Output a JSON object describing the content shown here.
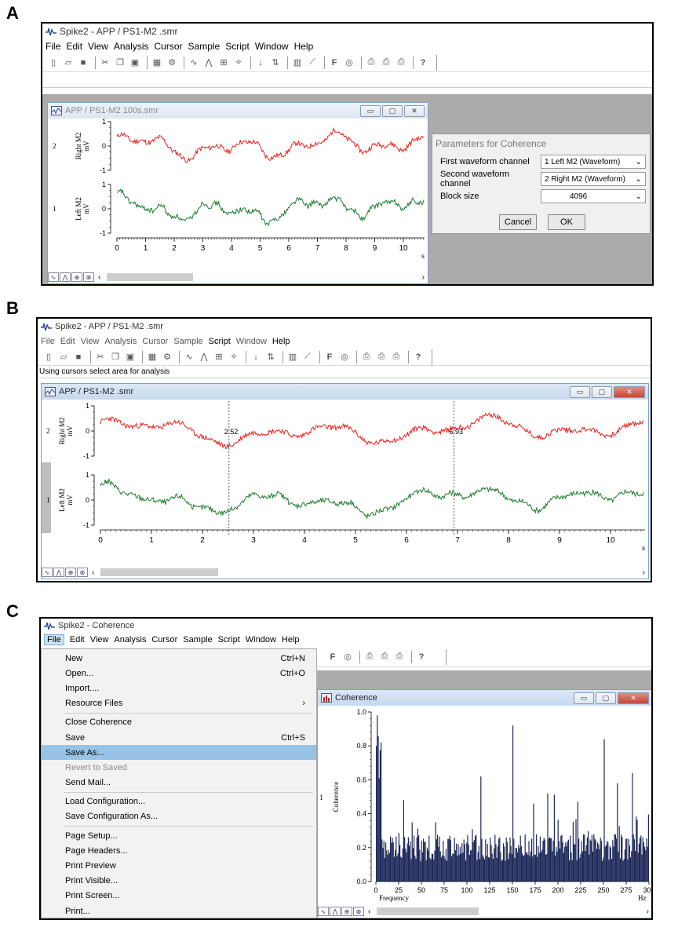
{
  "panels": {
    "A": {
      "letter": "A",
      "app_title": "Spike2 - APP / PS1-M2 .smr",
      "menu": [
        "File",
        "Edit",
        "View",
        "Analysis",
        "Cursor",
        "Sample",
        "Script",
        "Window",
        "Help"
      ],
      "child_title": "APP / PS1-M2 100s.smr",
      "channels": [
        {
          "num": "2",
          "label": "Right M2",
          "unit": "mV",
          "color": "#e8211c"
        },
        {
          "num": "1",
          "label": "Left M2",
          "unit": "mV",
          "color": "#1a7a2e"
        }
      ],
      "yticks": [
        "1",
        "0",
        "-1"
      ],
      "xticks": [
        "0",
        "1",
        "2",
        "3",
        "4",
        "5",
        "6",
        "7",
        "8",
        "9",
        "10"
      ],
      "xunit": "s",
      "dialog": {
        "title": "Parameters for Coherence",
        "rows": [
          {
            "label": "First waveform channel",
            "value": "1 Left M2 (Waveform)"
          },
          {
            "label": "Second waveform channel",
            "value": "2 Right M2 (Waveform)"
          },
          {
            "label": "Block size",
            "value": "4096"
          }
        ],
        "cancel": "Cancel",
        "ok": "OK"
      }
    },
    "B": {
      "letter": "B",
      "app_title": "Spike2 - APP / PS1-M2 .smr",
      "menu": [
        "File",
        "Edit",
        "View",
        "Analysis",
        "Cursor",
        "Sample",
        "Script",
        "Window",
        "Help"
      ],
      "status": "Using cursors select area for analysis",
      "child_title": "APP / PS1-M2 .smr",
      "channels": [
        {
          "num": "2",
          "label": "Right M2",
          "unit": "mV",
          "color": "#e8211c"
        },
        {
          "num": "1",
          "label": "Left M2",
          "unit": "mV",
          "color": "#1a7a2e"
        }
      ],
      "yticks": [
        "1",
        "0",
        "-1"
      ],
      "xticks": [
        "0",
        "1",
        "2",
        "3",
        "4",
        "5",
        "6",
        "7",
        "8",
        "9",
        "10"
      ],
      "xunit": "s",
      "cursors": [
        {
          "label": "2.52",
          "t": 2.52
        },
        {
          "label": "6.93",
          "t": 6.93
        }
      ]
    },
    "C": {
      "letter": "C",
      "app_title": "Spike2 - Coherence",
      "menu": [
        "File",
        "Edit",
        "View",
        "Analysis",
        "Cursor",
        "Sample",
        "Script",
        "Window",
        "Help"
      ],
      "child_title": "Coherence",
      "file_menu": [
        {
          "label": "New",
          "shortcut": "Ctrl+N"
        },
        {
          "label": "Open...",
          "shortcut": "Ctrl+O"
        },
        {
          "label": "Import....",
          "shortcut": ""
        },
        {
          "label": "Resource Files",
          "shortcut": "›"
        },
        {
          "sep": true
        },
        {
          "label": "Close Coherence",
          "shortcut": ""
        },
        {
          "label": "Save",
          "shortcut": "Ctrl+S"
        },
        {
          "label": "Save As...",
          "shortcut": "",
          "highlight": true
        },
        {
          "label": "Revert to Saved",
          "shortcut": "",
          "disabled": true
        },
        {
          "label": "Send Mail...",
          "shortcut": ""
        },
        {
          "sep": true
        },
        {
          "label": "Load Configuration...",
          "shortcut": ""
        },
        {
          "label": "Save Configuration As...",
          "shortcut": ""
        },
        {
          "sep": true
        },
        {
          "label": "Page Setup...",
          "shortcut": ""
        },
        {
          "label": "Page Headers...",
          "shortcut": ""
        },
        {
          "label": "Print Preview",
          "shortcut": ""
        },
        {
          "label": "Print Visible...",
          "shortcut": ""
        },
        {
          "label": "Print Screen...",
          "shortcut": ""
        },
        {
          "label": "Print...",
          "shortcut": ""
        }
      ]
    }
  },
  "chart_data": {
    "type": "bar",
    "xlabel": "Frequency",
    "xunit": "Hz",
    "ylabel": "Coherence",
    "channel_num": "1",
    "ylim": [
      0,
      1.0
    ],
    "xlim": [
      0,
      300
    ],
    "yticks": [
      "1.0",
      "0.8",
      "0.6",
      "0.4",
      "0.2",
      "0.0"
    ],
    "xticks": [
      "0",
      "25",
      "50",
      "75",
      "100",
      "125",
      "150",
      "175",
      "200",
      "225",
      "250",
      "275",
      "300"
    ],
    "color": "#1f2a5a",
    "peaks": [
      {
        "x": 1,
        "y": 0.98
      },
      {
        "x": 5,
        "y": 0.82
      },
      {
        "x": 30,
        "y": 0.48
      },
      {
        "x": 115,
        "y": 0.62
      },
      {
        "x": 150,
        "y": 0.92
      },
      {
        "x": 188,
        "y": 0.52
      },
      {
        "x": 250,
        "y": 0.84
      },
      {
        "x": 265,
        "y": 0.58
      },
      {
        "x": 282,
        "y": 0.64
      }
    ]
  }
}
